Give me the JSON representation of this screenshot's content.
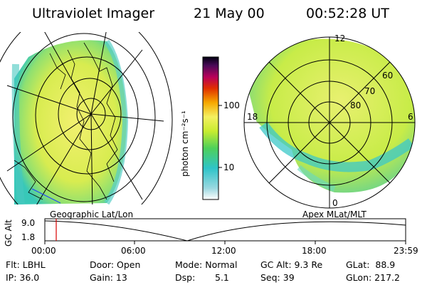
{
  "header": {
    "instrument": "Ultraviolet Imager",
    "date": "21 May 00",
    "time": "00:52:28 UT"
  },
  "colorbar": {
    "unit_label": "photon cm⁻²s⁻¹",
    "ticks": [
      "100",
      "10"
    ],
    "scale": "log"
  },
  "panels": {
    "left_label": "Geographic Lat/Lon",
    "right_label": "Apex MLat/MLT",
    "mlt_labels": [
      "12",
      "18",
      "6",
      "0"
    ],
    "mlat_labels": [
      "60",
      "70",
      "80"
    ]
  },
  "altitude_plot": {
    "ylabel": "GC Alt",
    "yticks": [
      "9.0",
      "1.8"
    ],
    "xticks": [
      "00:00",
      "06:00",
      "12:00",
      "18:00",
      "23:59"
    ],
    "current_time_marker_hours": 0.87,
    "marker_color": "#d80000"
  },
  "footer": {
    "flt": "Flt: LBHL",
    "ip": "IP: 36.0",
    "door": "Door: Open",
    "gain": "Gain: 13",
    "mode": "Mode: Normal",
    "dsp_label": "Dsp:",
    "dsp_value": "5.1",
    "gc_alt": "GC Alt: 9.3 Re",
    "seq": "Seq: 39",
    "glat": "GLat:  88.9",
    "glon": "GLon: 217.2"
  }
}
